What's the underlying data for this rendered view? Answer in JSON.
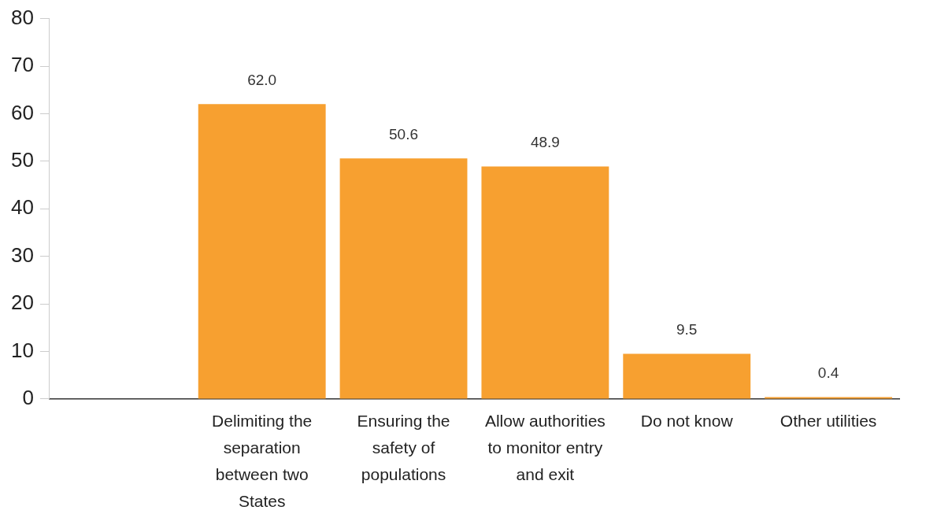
{
  "chart_data": {
    "type": "bar",
    "categories": [
      null,
      "Delimiting the separation between two States",
      "Ensuring the safety of populations",
      "Allow authorities to monitor entry and exit",
      "Do not know",
      "Other utilities"
    ],
    "values": [
      null,
      62.0,
      50.6,
      48.9,
      9.5,
      0.4
    ],
    "value_labels": [
      null,
      "62.0",
      "50.6",
      "48.9",
      "9.5",
      "0.4"
    ],
    "color": "#f7a030",
    "ylim": [
      0,
      80
    ],
    "yticks": [
      0,
      10,
      20,
      30,
      40,
      50,
      60,
      70,
      80
    ],
    "grid": false,
    "legend": false
  }
}
